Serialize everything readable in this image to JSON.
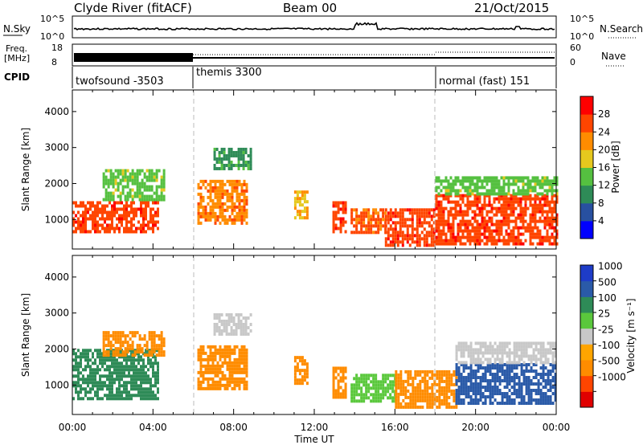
{
  "header": {
    "station": "Clyde River (fitACF)",
    "beam": "Beam 00",
    "date": "21/Oct/2015"
  },
  "noise_panel": {
    "left_label": "N.Sky",
    "left_ticks": [
      "10^5",
      "10^0"
    ],
    "right_ticks": [
      "10^5",
      "10^0"
    ],
    "right_label": "N.Search"
  },
  "freq_panel": {
    "left_label_line1": "Freq.",
    "left_label_line2": "[MHz]",
    "left_ticks": [
      "18",
      "8"
    ],
    "right_ticks": [
      "60",
      "0"
    ],
    "right_label": "Nave"
  },
  "cpid": {
    "label": "CPID",
    "modes": [
      {
        "name": "twofsound -3503",
        "start_hour": 0
      },
      {
        "name": "themis 3300",
        "start_hour": 6
      },
      {
        "name": "normal (fast) 151",
        "start_hour": 18
      }
    ]
  },
  "colors": {
    "power_scale": [
      "#0000ff",
      "#2850a0",
      "#2e8b57",
      "#55c040",
      "#e6c81e",
      "#ff8c00",
      "#ff4500",
      "#ff0000"
    ],
    "velocity_scale": [
      "#e00000",
      "#ff4500",
      "#ff8c00",
      "#ffa500",
      "#c8c8c8",
      "#5ac83c",
      "#2e8b57",
      "#2a5aa8",
      "#1e3cc8"
    ]
  },
  "chart_data": [
    {
      "type": "heatmap",
      "panel": "power",
      "xlabel": "Time UT",
      "ylabel": "Slant Range [km]",
      "xlim": [
        0,
        24
      ],
      "ylim": [
        180,
        4600
      ],
      "x_ticks": [
        "00:00",
        "04:00",
        "08:00",
        "12:00",
        "16:00",
        "20:00",
        "00:00"
      ],
      "y_ticks": [
        1000,
        2000,
        3000,
        4000
      ],
      "colorbar": {
        "label": "Power [dB]",
        "ticks": [
          4,
          8,
          12,
          16,
          20,
          24,
          28
        ],
        "range": [
          0,
          32
        ]
      },
      "regions": [
        {
          "t": [
            0.0,
            4.3
          ],
          "r": [
            600,
            1500
          ],
          "value": 28
        },
        {
          "t": [
            1.5,
            4.6
          ],
          "r": [
            1500,
            2400
          ],
          "value": 14
        },
        {
          "t": [
            6.2,
            8.6
          ],
          "r": [
            900,
            2100
          ],
          "value": 24
        },
        {
          "t": [
            7.0,
            8.8
          ],
          "r": [
            2400,
            3000
          ],
          "value": 10
        },
        {
          "t": [
            11.0,
            11.6
          ],
          "r": [
            1000,
            1800
          ],
          "value": 20
        },
        {
          "t": [
            12.9,
            13.6
          ],
          "r": [
            600,
            1500
          ],
          "value": 28
        },
        {
          "t": [
            13.8,
            15.5
          ],
          "r": [
            600,
            1300
          ],
          "value": 26
        },
        {
          "t": [
            15.5,
            18.0
          ],
          "r": [
            300,
            1300
          ],
          "value": 28
        },
        {
          "t": [
            18.0,
            24.0
          ],
          "r": [
            300,
            1700
          ],
          "value": 28
        },
        {
          "t": [
            18.0,
            24.0
          ],
          "r": [
            1700,
            2200
          ],
          "value": 14
        }
      ]
    },
    {
      "type": "heatmap",
      "panel": "velocity",
      "xlabel": "Time UT",
      "ylabel": "Slant Range [km]",
      "xlim": [
        0,
        24
      ],
      "ylim": [
        180,
        4600
      ],
      "x_ticks": [
        "00:00",
        "04:00",
        "08:00",
        "12:00",
        "16:00",
        "20:00",
        "00:00"
      ],
      "y_ticks": [
        1000,
        2000,
        3000,
        4000
      ],
      "colorbar": {
        "label": "Velocity [m s⁻¹]",
        "ticks": [
          "1000",
          "500",
          "100",
          "25",
          "-25",
          "-100",
          "-500",
          "-1000"
        ]
      },
      "regions": [
        {
          "t": [
            0.0,
            4.3
          ],
          "r": [
            600,
            2000
          ],
          "value": 300
        },
        {
          "t": [
            1.5,
            4.6
          ],
          "r": [
            1800,
            2500
          ],
          "value": -100
        },
        {
          "t": [
            6.2,
            8.6
          ],
          "r": [
            900,
            2100
          ],
          "value": -300
        },
        {
          "t": [
            7.0,
            8.8
          ],
          "r": [
            2400,
            3000
          ],
          "value": 0
        },
        {
          "t": [
            11.0,
            11.6
          ],
          "r": [
            1000,
            1800
          ],
          "value": -200
        },
        {
          "t": [
            12.9,
            13.6
          ],
          "r": [
            600,
            1500
          ],
          "value": -300
        },
        {
          "t": [
            13.8,
            16.0
          ],
          "r": [
            500,
            1300
          ],
          "value": 80
        },
        {
          "t": [
            16.0,
            19.0
          ],
          "r": [
            400,
            1400
          ],
          "value": -400
        },
        {
          "t": [
            19.0,
            24.0
          ],
          "r": [
            500,
            1600
          ],
          "value": 800
        },
        {
          "t": [
            19.0,
            24.0
          ],
          "r": [
            1600,
            2200
          ],
          "value": 10
        }
      ]
    }
  ]
}
